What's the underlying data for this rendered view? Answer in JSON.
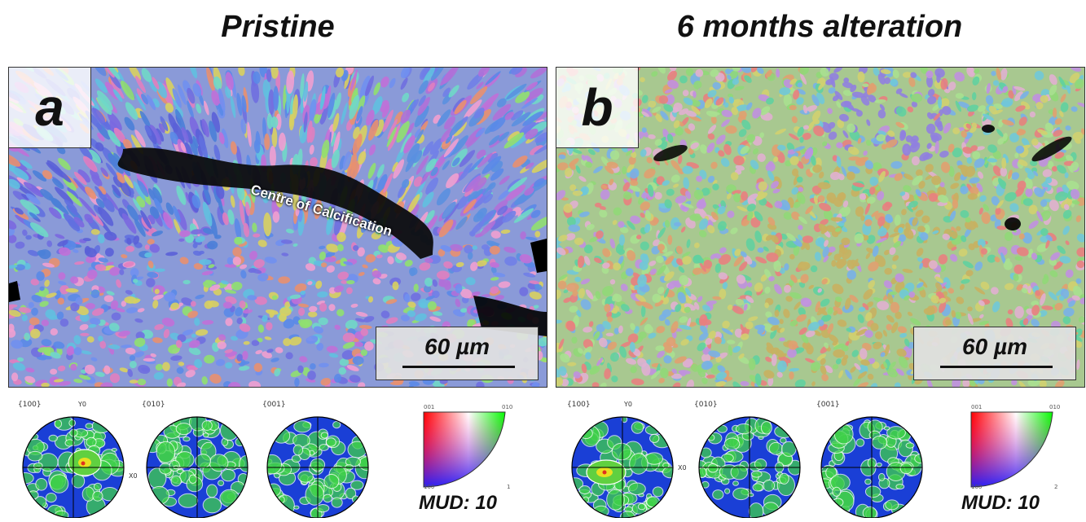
{
  "titles": {
    "left": "Pristine",
    "right": "6 months alteration"
  },
  "panels": {
    "a": {
      "letter": "a",
      "scale_text": "60 µm",
      "annotation": "Centre of Calcification"
    },
    "b": {
      "letter": "b",
      "scale_text": "60 µm"
    }
  },
  "pole_figures": {
    "a": [
      {
        "label": "{100}",
        "axis_top": "Y0",
        "axis_right": "X0"
      },
      {
        "label": "{010}"
      },
      {
        "label": "{001}"
      }
    ],
    "b": [
      {
        "label": "{100}",
        "axis_top": "Y0",
        "axis_right": "X0"
      },
      {
        "label": "{010}"
      },
      {
        "label": "{001}"
      }
    ]
  },
  "color_key": {
    "c001": "001",
    "c010": "010",
    "c100": "100",
    "c1": "1",
    "c2": "2"
  },
  "mud": {
    "a": "MUD: 10",
    "b": "MUD: 10"
  },
  "colors": {
    "pf_background": "#1a3fd6",
    "pf_hot": "#3fd04a",
    "pf_peak": "#e8e020",
    "contour": "#ffffff"
  }
}
